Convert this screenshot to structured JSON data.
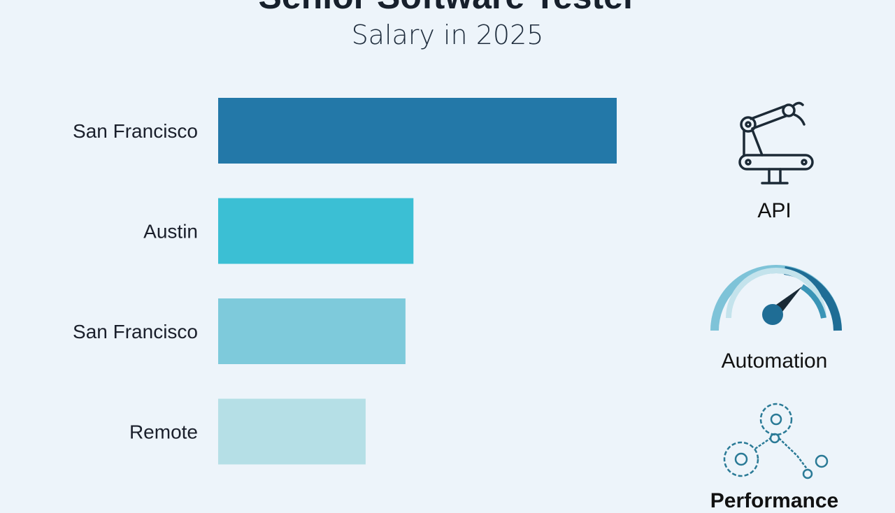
{
  "header": {
    "title": "Senior Software Tester",
    "subtitle": "Salary in 2025"
  },
  "chart_data": {
    "type": "bar",
    "orientation": "horizontal",
    "title": "Senior Software Tester",
    "subtitle": "Salary in 2025",
    "categories": [
      "San Francisco",
      "Austin",
      "San Francisco",
      "Remote"
    ],
    "values": [
      100,
      49,
      47,
      37
    ],
    "value_scale": "relative (no axis printed)",
    "colors": [
      "#2378a8",
      "#3bbfd4",
      "#7ecadb",
      "#b5dfe6"
    ],
    "grid": false,
    "xlabel": "",
    "ylabel": ""
  },
  "side_panel": {
    "items": [
      {
        "label": "API",
        "icon": "robot-arm-icon"
      },
      {
        "label": "Automation",
        "icon": "speedometer-icon"
      },
      {
        "label": "Performance",
        "icon": "gears-icon"
      }
    ]
  },
  "colors": {
    "background": "#edf4fa",
    "text": "#1a1f2b",
    "icon_stroke": "#1c2a36",
    "accent": "#2378a8"
  }
}
